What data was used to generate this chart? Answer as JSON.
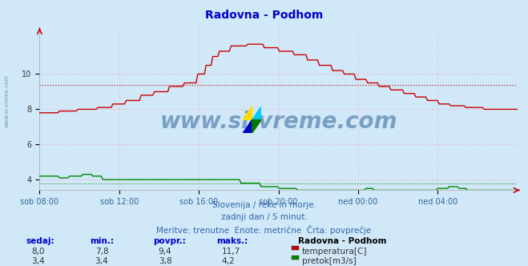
{
  "title": "Radovna - Podhom",
  "title_color": "#0000cc",
  "bg_color": "#d0e8f8",
  "plot_bg_color": "#d0e8f8",
  "grid_color": "#ffaaaa",
  "xlabel_ticks": [
    "sob 08:00",
    "sob 12:00",
    "sob 16:00",
    "sob 20:00",
    "ned 00:00",
    "ned 04:00"
  ],
  "yticks": [
    4,
    6,
    8,
    10
  ],
  "ylim": [
    3.4,
    12.7
  ],
  "temp_avg": 9.4,
  "flow_avg": 3.8,
  "temp_color": "#cc0000",
  "flow_color": "#008800",
  "height_color": "#0000cc",
  "watermark": "www.si-vreme.com",
  "watermark_color": "#336699",
  "subtitle1": "Slovenija / reke in morje.",
  "subtitle2": "zadnji dan / 5 minut.",
  "subtitle3": "Meritve: trenutne  Enote: metrične  Črta: povprečje",
  "subtitle_color": "#3366aa",
  "table_header": [
    "sedaj:",
    "min.:",
    "povpr.:",
    "maks.:"
  ],
  "table_temp": [
    "8,0",
    "7,8",
    "9,4",
    "11,7"
  ],
  "table_flow": [
    "3,4",
    "3,4",
    "3,8",
    "4,2"
  ],
  "legend_title": "Radovna - Podhom",
  "legend_temp": "temperatura[C]",
  "legend_flow": "pretok[m3/s]",
  "left_label": "www.si-vreme.com",
  "left_label_color": "#5588aa"
}
